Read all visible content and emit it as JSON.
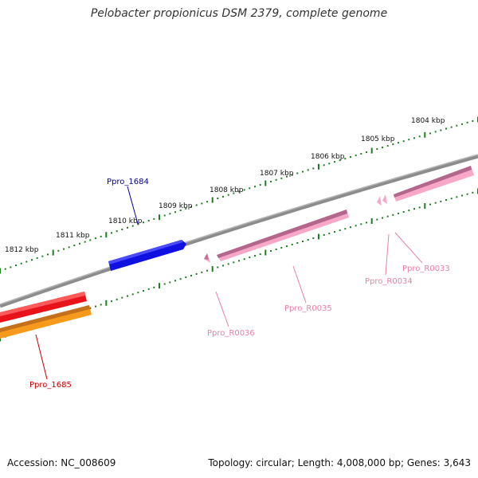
{
  "title": "Pelobacter propionicus DSM 2379, complete genome",
  "footer": {
    "accession": "Accession: NC_008609",
    "summary": "Topology: circular; Length: 4,008,000 bp; Genes: 3,643"
  },
  "colors": {
    "backbone": "#7a7a7a",
    "tick_major": "#1e7d1e",
    "cds_red": "#e8131a",
    "cds_orange": "#f59a1c",
    "cds_blue": "#1010e0",
    "rna_pink": "#f7a7c7"
  },
  "scale_labels": [
    "1812 kbp",
    "1811 kbp",
    "1810 kbp",
    "1809 kbp",
    "1808 kbp",
    "1807 kbp",
    "1806 kbp",
    "1805 kbp",
    "1804 kbp"
  ],
  "genes": [
    {
      "name": "Ppro_1684",
      "color": "#000099"
    },
    {
      "name": "Ppro_1685",
      "color": "#cc0000"
    },
    {
      "name": "Ppro_R0036",
      "color": "#e87faa"
    },
    {
      "name": "Ppro_R0035",
      "color": "#e87faa"
    },
    {
      "name": "Ppro_R0034",
      "color": "#e87faa"
    },
    {
      "name": "Ppro_R0033",
      "color": "#e87faa"
    }
  ]
}
